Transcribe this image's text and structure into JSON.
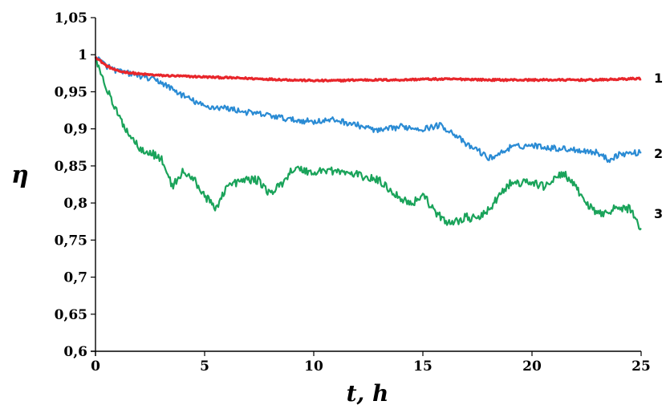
{
  "chart_data": {
    "type": "line",
    "title": "",
    "xlabel": "t, h",
    "ylabel": "η",
    "xlim": [
      0,
      25
    ],
    "ylim": [
      0.6,
      1.05
    ],
    "x_ticks": [
      0,
      5,
      10,
      15,
      20,
      25
    ],
    "x_tick_labels": [
      "0",
      "5",
      "10",
      "15",
      "20",
      "25"
    ],
    "y_ticks": [
      0.6,
      0.65,
      0.7,
      0.75,
      0.8,
      0.85,
      0.9,
      0.95,
      1.0,
      1.05
    ],
    "y_tick_labels": [
      "0,6",
      "0,65",
      "0,7",
      "0,75",
      "0,8",
      "0,85",
      "0,9",
      "0,95",
      "1",
      "1,05"
    ],
    "grid": false,
    "legend": "none",
    "series": [
      {
        "name": "1",
        "color": "#e8262b",
        "points": [
          [
            0,
            0.997
          ],
          [
            0.5,
            0.985
          ],
          [
            1,
            0.978
          ],
          [
            2,
            0.974
          ],
          [
            3,
            0.972
          ],
          [
            4,
            0.971
          ],
          [
            5,
            0.97
          ],
          [
            6,
            0.969
          ],
          [
            7,
            0.968
          ],
          [
            8,
            0.967
          ],
          [
            9,
            0.966
          ],
          [
            10,
            0.965
          ],
          [
            11,
            0.965
          ],
          [
            12,
            0.966
          ],
          [
            13,
            0.966
          ],
          [
            14,
            0.966
          ],
          [
            15,
            0.967
          ],
          [
            16,
            0.967
          ],
          [
            17,
            0.967
          ],
          [
            18,
            0.966
          ],
          [
            19,
            0.966
          ],
          [
            20,
            0.966
          ],
          [
            21,
            0.966
          ],
          [
            22,
            0.966
          ],
          [
            23,
            0.966
          ],
          [
            24,
            0.967
          ],
          [
            25,
            0.968
          ]
        ]
      },
      {
        "name": "2",
        "color": "#2a8bd4",
        "points": [
          [
            0,
            0.997
          ],
          [
            0.5,
            0.985
          ],
          [
            1,
            0.978
          ],
          [
            2,
            0.972
          ],
          [
            3,
            0.963
          ],
          [
            4,
            0.945
          ],
          [
            5,
            0.93
          ],
          [
            6,
            0.928
          ],
          [
            7,
            0.922
          ],
          [
            8,
            0.918
          ],
          [
            9,
            0.912
          ],
          [
            10,
            0.91
          ],
          [
            11,
            0.912
          ],
          [
            12,
            0.905
          ],
          [
            13,
            0.897
          ],
          [
            14,
            0.903
          ],
          [
            15,
            0.9
          ],
          [
            15.8,
            0.905
          ],
          [
            16.5,
            0.892
          ],
          [
            17,
            0.878
          ],
          [
            17.5,
            0.872
          ],
          [
            18,
            0.86
          ],
          [
            18.5,
            0.866
          ],
          [
            19,
            0.875
          ],
          [
            20,
            0.878
          ],
          [
            21,
            0.874
          ],
          [
            22,
            0.872
          ],
          [
            23,
            0.868
          ],
          [
            23.5,
            0.858
          ],
          [
            24,
            0.866
          ],
          [
            25,
            0.868
          ]
        ]
      },
      {
        "name": "3",
        "color": "#1aa35a",
        "points": [
          [
            0,
            0.997
          ],
          [
            0.5,
            0.955
          ],
          [
            1,
            0.92
          ],
          [
            1.5,
            0.895
          ],
          [
            2,
            0.875
          ],
          [
            2.5,
            0.868
          ],
          [
            3,
            0.86
          ],
          [
            3.3,
            0.84
          ],
          [
            3.5,
            0.822
          ],
          [
            4,
            0.842
          ],
          [
            4.5,
            0.832
          ],
          [
            5,
            0.81
          ],
          [
            5.5,
            0.792
          ],
          [
            6,
            0.822
          ],
          [
            6.5,
            0.828
          ],
          [
            7,
            0.832
          ],
          [
            7.5,
            0.83
          ],
          [
            8,
            0.812
          ],
          [
            8.5,
            0.825
          ],
          [
            9,
            0.845
          ],
          [
            9.5,
            0.845
          ],
          [
            10,
            0.84
          ],
          [
            10.5,
            0.845
          ],
          [
            11,
            0.843
          ],
          [
            12,
            0.838
          ],
          [
            13,
            0.83
          ],
          [
            13.5,
            0.818
          ],
          [
            14,
            0.806
          ],
          [
            14.5,
            0.799
          ],
          [
            15,
            0.812
          ],
          [
            15.5,
            0.79
          ],
          [
            16,
            0.775
          ],
          [
            16.5,
            0.775
          ],
          [
            17,
            0.781
          ],
          [
            17.5,
            0.778
          ],
          [
            18,
            0.79
          ],
          [
            18.5,
            0.81
          ],
          [
            19,
            0.826
          ],
          [
            20,
            0.828
          ],
          [
            20.5,
            0.822
          ],
          [
            21,
            0.832
          ],
          [
            21.5,
            0.84
          ],
          [
            22,
            0.82
          ],
          [
            22.5,
            0.8
          ],
          [
            23,
            0.784
          ],
          [
            23.5,
            0.79
          ],
          [
            24,
            0.793
          ],
          [
            24.5,
            0.792
          ],
          [
            25,
            0.765
          ]
        ]
      }
    ]
  }
}
